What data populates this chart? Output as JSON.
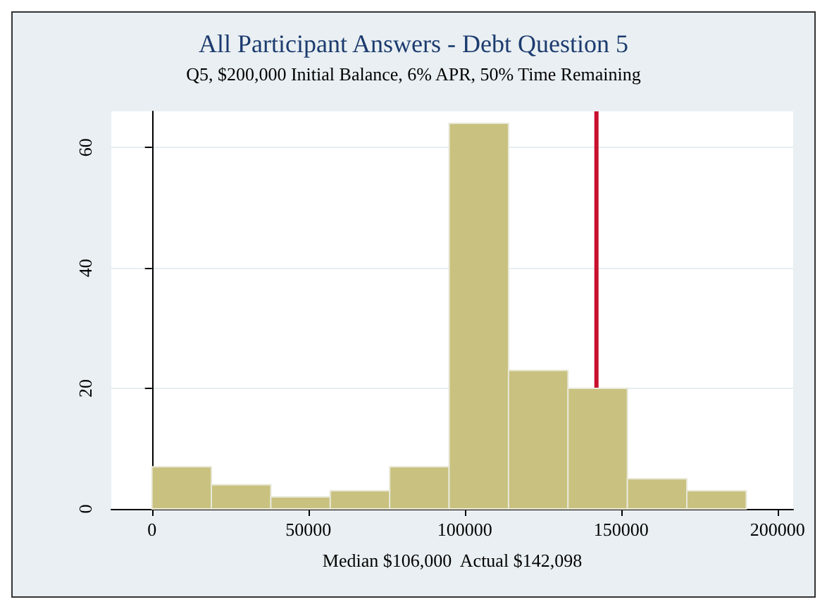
{
  "chart_data": {
    "type": "histogram",
    "title": "All Participant Answers - Debt Question 5",
    "subtitle": "Q5, $200,000 Initial Balance, 6% APR, 50% Time Remaining",
    "xlabel": "Median $106,000  Actual $142,098",
    "bins": [
      0,
      19000,
      38000,
      57000,
      76000,
      95000,
      114000,
      133000,
      152000,
      171000,
      190000
    ],
    "values": [
      7,
      4,
      2,
      3,
      7,
      64,
      23,
      20,
      5,
      3
    ],
    "color": "#c9c17f",
    "xlim": [
      -13000,
      205000
    ],
    "xticks": [
      0,
      50000,
      100000,
      150000,
      200000
    ],
    "ylim": [
      0,
      66
    ],
    "yticks": [
      0,
      20,
      40,
      60
    ],
    "grid": "y",
    "ref_lines": [
      {
        "axis": "x",
        "value": 142098,
        "color": "#c8102e"
      }
    ]
  }
}
